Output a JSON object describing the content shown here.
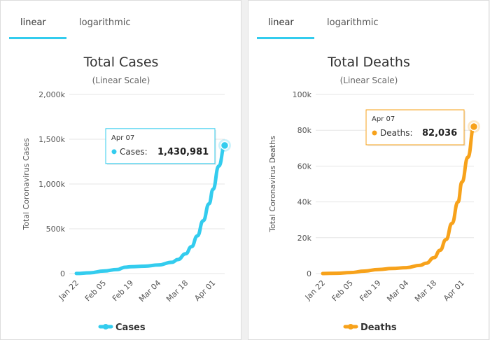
{
  "chart_data": [
    {
      "type": "line",
      "tabs": [
        "linear",
        "logarithmic"
      ],
      "title": "Total Cases",
      "subtitle": "(Linear Scale)",
      "ylabel": "Total Coronavirus Cases",
      "ylim": [
        0,
        2000000
      ],
      "yticks": [
        0,
        500000,
        1000000,
        1500000,
        2000000
      ],
      "ytick_labels": [
        "0",
        "500k",
        "1,000k",
        "1,500k",
        "2,000k"
      ],
      "xtick_labels": [
        "Jan 22",
        "Feb 05",
        "Feb 19",
        "Mar 04",
        "Mar 18",
        "Apr 01"
      ],
      "x": [
        "Jan 22",
        "Jan 29",
        "Feb 05",
        "Feb 12",
        "Feb 16",
        "Feb 19",
        "Feb 26",
        "Mar 04",
        "Mar 11",
        "Mar 14",
        "Mar 18",
        "Mar 21",
        "Mar 24",
        "Mar 27",
        "Mar 30",
        "Apr 01",
        "Apr 04",
        "Apr 07"
      ],
      "series": [
        {
          "name": "Cases",
          "color": "#33ccee",
          "values": [
            580,
            7800,
            28000,
            45000,
            70000,
            76000,
            82000,
            95000,
            126000,
            156000,
            220000,
            300000,
            420000,
            590000,
            780000,
            940000,
            1200000,
            1430981
          ]
        }
      ],
      "tooltip": {
        "date": "Apr 07",
        "label": "Cases:",
        "value": "1,430,981"
      },
      "legend": "Cases",
      "legend_position": "bottom",
      "grid": true
    },
    {
      "type": "line",
      "tabs": [
        "linear",
        "logarithmic"
      ],
      "title": "Total Deaths",
      "subtitle": "(Linear Scale)",
      "ylabel": "Total Coronavirus Deaths",
      "ylim": [
        0,
        100000
      ],
      "yticks": [
        0,
        20000,
        40000,
        60000,
        80000,
        100000
      ],
      "ytick_labels": [
        "0",
        "20k",
        "40k",
        "60k",
        "80k",
        "100k"
      ],
      "xtick_labels": [
        "Jan 22",
        "Feb 05",
        "Feb 19",
        "Mar 04",
        "Mar 18",
        "Apr 01"
      ],
      "x": [
        "Jan 22",
        "Jan 29",
        "Feb 05",
        "Feb 12",
        "Feb 19",
        "Feb 26",
        "Mar 04",
        "Mar 11",
        "Mar 14",
        "Mar 18",
        "Mar 21",
        "Mar 24",
        "Mar 27",
        "Mar 30",
        "Apr 01",
        "Apr 04",
        "Apr 07"
      ],
      "series": [
        {
          "name": "Deaths",
          "color": "#f7a21b",
          "values": [
            17,
            170,
            565,
            1370,
            2250,
            2810,
            3300,
            4600,
            5800,
            8900,
            13000,
            19000,
            28000,
            40000,
            51000,
            65000,
            82036
          ]
        }
      ],
      "tooltip": {
        "date": "Apr 07",
        "label": "Deaths:",
        "value": "82,036"
      },
      "legend": "Deaths",
      "legend_position": "bottom",
      "grid": true
    }
  ]
}
